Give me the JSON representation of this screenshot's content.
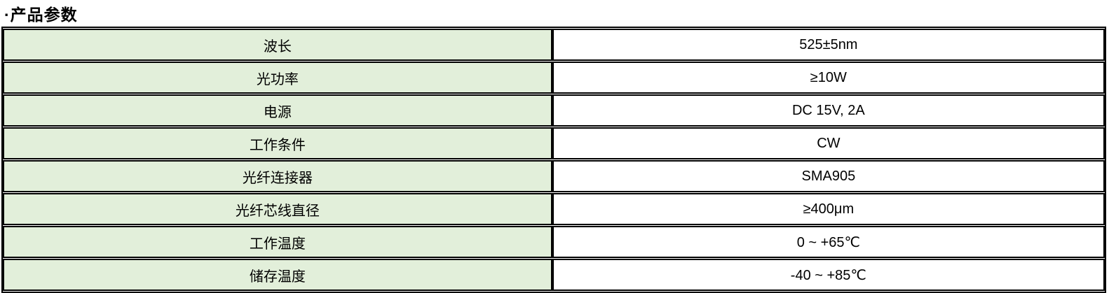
{
  "title": "·产品参数",
  "colors": {
    "label_cell_background": "#e2efda",
    "value_cell_background": "#ffffff",
    "border": "#000000",
    "text": "#000000"
  },
  "table": {
    "rows": [
      {
        "label": "波长",
        "value": "525±5nm"
      },
      {
        "label": "光功率",
        "value": "≥10W"
      },
      {
        "label": "电源",
        "value": "DC 15V, 2A"
      },
      {
        "label": "工作条件",
        "value": "CW"
      },
      {
        "label": "光纤连接器",
        "value": "SMA905"
      },
      {
        "label": "光纤芯线直径",
        "value": "≥400μm"
      },
      {
        "label": "工作温度",
        "value": "0 ~ +65℃"
      },
      {
        "label": "储存温度",
        "value": "-40 ~ +85℃"
      }
    ]
  }
}
